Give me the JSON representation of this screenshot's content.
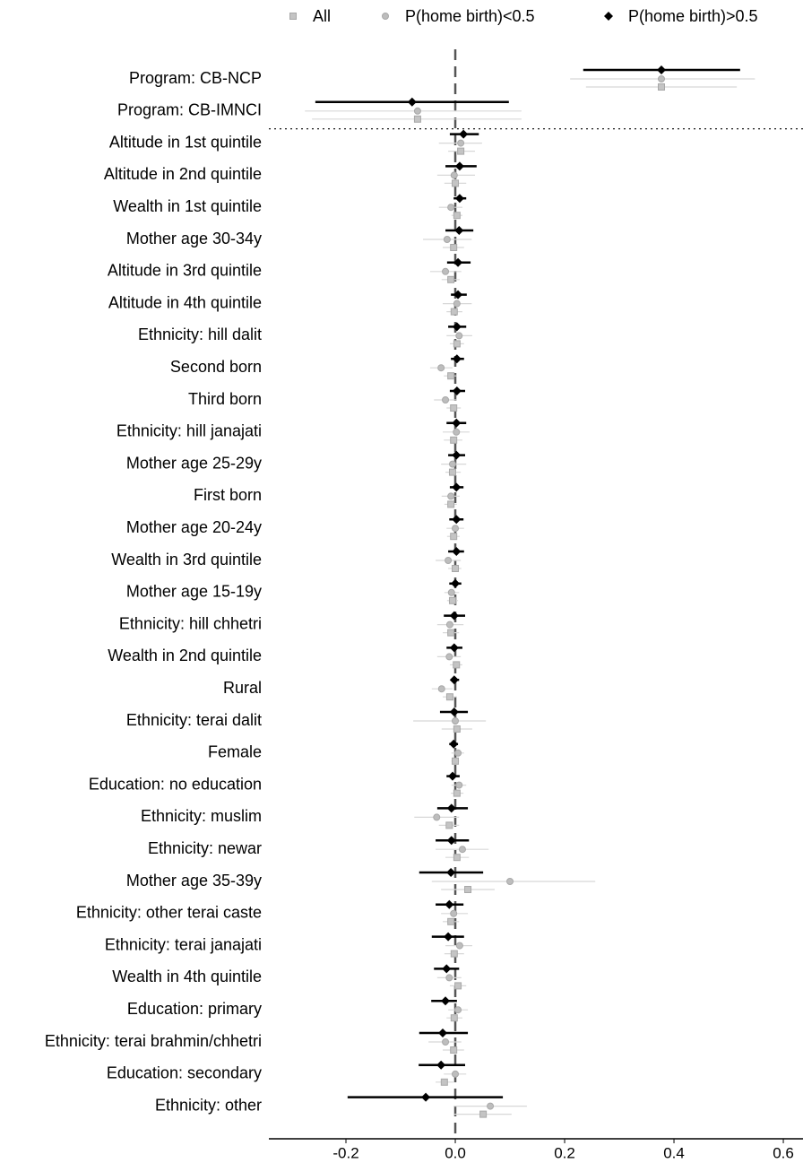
{
  "chart_data": {
    "type": "forest",
    "categories": [
      "Program: CB-NCP",
      "Program: CB-IMNCI",
      "Altitude in 1st quintile",
      "Altitude in 2nd quintile",
      "Wealth in 1st quintile",
      "Mother age 30-34y",
      "Altitude in 3rd quintile",
      "Altitude in 4th quintile",
      "Ethnicity: hill dalit",
      "Second born",
      "Third born",
      "Ethnicity: hill janajati",
      "Mother age 25-29y",
      "First born",
      "Mother age 20-24y",
      "Wealth in 3rd quintile",
      "Mother age 15-19y",
      "Ethnicity: hill chhetri",
      "Wealth in 2nd quintile",
      "Rural",
      "Ethnicity: terai dalit",
      "Female",
      "Education: no education",
      "Ethnicity: muslim",
      "Ethnicity: newar",
      "Mother age 35-39y",
      "Ethnicity: other terai caste",
      "Ethnicity: terai janajati",
      "Wealth in 4th quintile",
      "Education: primary",
      "Ethnicity: terai brahmin/chhetri",
      "Education: secondary",
      "Ethnicity: other"
    ],
    "series": [
      {
        "name": "All",
        "color": "#c4c4c4",
        "marker": "square",
        "values": [
          0.377,
          -0.069,
          0.01,
          0.0,
          0.003,
          -0.003,
          -0.008,
          -0.002,
          0.003,
          -0.008,
          -0.003,
          -0.003,
          -0.005,
          -0.008,
          -0.003,
          0.0,
          -0.005,
          -0.008,
          0.002,
          -0.01,
          0.003,
          0.0,
          0.003,
          -0.011,
          0.003,
          0.023,
          -0.008,
          -0.002,
          0.005,
          -0.002,
          -0.003,
          -0.02,
          0.051
        ],
        "lower": [
          0.239,
          -0.262,
          -0.013,
          -0.02,
          -0.007,
          -0.023,
          -0.025,
          -0.016,
          -0.01,
          -0.021,
          -0.016,
          -0.021,
          -0.018,
          -0.02,
          -0.015,
          -0.013,
          -0.015,
          -0.023,
          -0.01,
          -0.023,
          -0.025,
          -0.007,
          -0.008,
          -0.03,
          -0.018,
          -0.026,
          -0.023,
          -0.02,
          -0.01,
          -0.016,
          -0.023,
          -0.036,
          -0.003
        ],
        "upper": [
          0.515,
          0.121,
          0.036,
          0.02,
          0.013,
          0.016,
          0.008,
          0.013,
          0.016,
          0.003,
          0.01,
          0.013,
          0.01,
          0.003,
          0.008,
          0.011,
          0.005,
          0.007,
          0.013,
          0.003,
          0.031,
          0.007,
          0.015,
          0.007,
          0.025,
          0.072,
          0.007,
          0.016,
          0.02,
          0.013,
          0.016,
          -0.003,
          0.103
        ]
      },
      {
        "name": "P(home birth)<0.5",
        "color": "#bdbdbd",
        "marker": "circle",
        "values": [
          0.377,
          -0.069,
          0.01,
          -0.002,
          -0.008,
          -0.015,
          -0.018,
          0.003,
          0.007,
          -0.026,
          -0.018,
          0.002,
          -0.005,
          -0.008,
          0.0,
          -0.013,
          -0.007,
          -0.01,
          -0.011,
          -0.025,
          0.0,
          0.005,
          0.007,
          -0.034,
          0.013,
          0.1,
          -0.003,
          0.008,
          -0.011,
          0.005,
          -0.018,
          0.0,
          0.064
        ],
        "lower": [
          0.21,
          -0.275,
          -0.03,
          -0.033,
          -0.03,
          -0.059,
          -0.046,
          -0.023,
          -0.016,
          -0.046,
          -0.039,
          -0.023,
          -0.026,
          -0.025,
          -0.016,
          -0.036,
          -0.02,
          -0.033,
          -0.033,
          -0.043,
          -0.077,
          -0.007,
          -0.007,
          -0.075,
          -0.036,
          -0.043,
          -0.026,
          -0.018,
          -0.033,
          -0.013,
          -0.049,
          -0.021,
          -0.003
        ],
        "upper": [
          0.548,
          0.121,
          0.049,
          0.036,
          0.013,
          0.03,
          0.011,
          0.03,
          0.031,
          -0.005,
          0.003,
          0.026,
          0.02,
          0.008,
          0.016,
          0.01,
          0.007,
          0.015,
          0.01,
          -0.005,
          0.056,
          0.016,
          0.02,
          0.007,
          0.061,
          0.256,
          0.023,
          0.031,
          0.011,
          0.023,
          0.011,
          0.02,
          0.131
        ]
      },
      {
        "name": "P(home birth)>0.5",
        "color": "#000000",
        "marker": "diamond",
        "values": [
          0.377,
          -0.079,
          0.015,
          0.008,
          0.008,
          0.007,
          0.005,
          0.005,
          0.003,
          0.003,
          0.003,
          0.002,
          0.002,
          0.002,
          0.002,
          0.002,
          0.0,
          -0.002,
          -0.002,
          -0.002,
          -0.002,
          -0.003,
          -0.005,
          -0.007,
          -0.007,
          -0.008,
          -0.011,
          -0.013,
          -0.016,
          -0.018,
          -0.023,
          -0.026,
          -0.054
        ],
        "lower": [
          0.234,
          -0.256,
          -0.01,
          -0.018,
          -0.003,
          -0.018,
          -0.015,
          -0.008,
          -0.013,
          -0.008,
          -0.01,
          -0.016,
          -0.013,
          -0.01,
          -0.011,
          -0.013,
          -0.011,
          -0.021,
          -0.016,
          -0.008,
          -0.028,
          -0.011,
          -0.016,
          -0.033,
          -0.036,
          -0.066,
          -0.036,
          -0.043,
          -0.039,
          -0.044,
          -0.066,
          -0.067,
          -0.197
        ],
        "upper": [
          0.521,
          0.098,
          0.043,
          0.039,
          0.02,
          0.033,
          0.028,
          0.021,
          0.02,
          0.016,
          0.018,
          0.02,
          0.018,
          0.015,
          0.015,
          0.016,
          0.011,
          0.018,
          0.013,
          0.007,
          0.023,
          0.005,
          0.008,
          0.023,
          0.025,
          0.051,
          0.015,
          0.016,
          0.007,
          0.003,
          0.023,
          0.018,
          0.087
        ]
      }
    ],
    "xlim": [
      -0.341,
      0.636
    ],
    "xticks": [
      -0.2,
      {
        "value": 0,
        "label": "0.0"
      },
      0.2,
      0.4,
      0.6
    ],
    "legend": "top"
  }
}
